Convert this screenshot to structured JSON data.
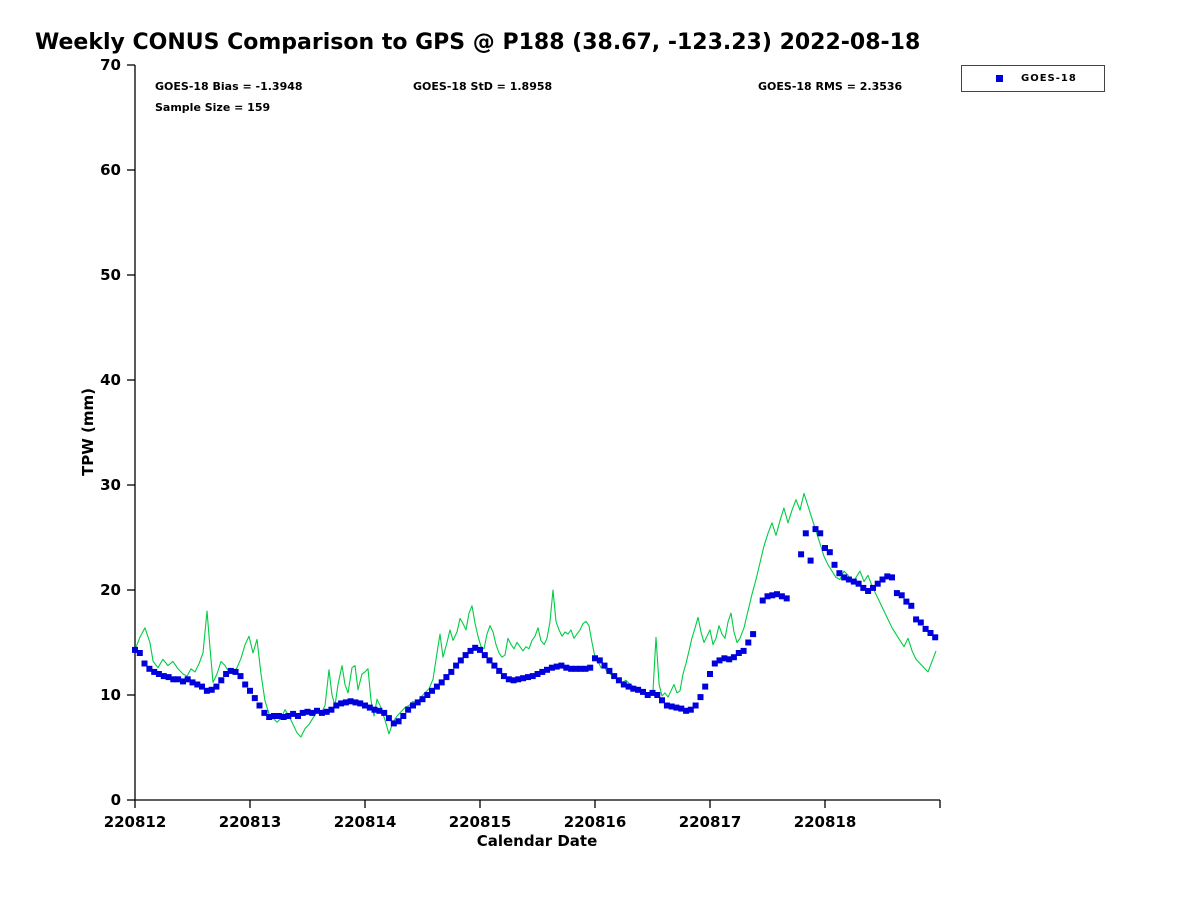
{
  "title": "Weekly CONUS Comparison to GPS @ P188 (38.67, -123.23) 2022-08-18",
  "annotations": {
    "bias": "GOES-18 Bias = -1.3948",
    "std": "GOES-18 StD = 1.8958",
    "rms": "GOES-18 RMS = 2.3536",
    "sample_size": "Sample Size = 159"
  },
  "legend": {
    "position": "top-right",
    "entries": [
      {
        "label": "GOES-18",
        "marker": "square",
        "color": "#0000dd"
      }
    ]
  },
  "chart_data": {
    "type": "line",
    "title": "Weekly CONUS Comparison to GPS @ P188 (38.67, -123.23) 2022-08-18",
    "xlabel": "Calendar Date",
    "ylabel": "TPW (mm)",
    "ylim": [
      0,
      70
    ],
    "xlim": [
      0,
      7
    ],
    "grid": false,
    "y_ticks": [
      0,
      10,
      20,
      30,
      40,
      50,
      60,
      70
    ],
    "x_ticks": [
      {
        "pos": 0,
        "label": "220812"
      },
      {
        "pos": 1,
        "label": "220813"
      },
      {
        "pos": 2,
        "label": "220814"
      },
      {
        "pos": 3,
        "label": "220815"
      },
      {
        "pos": 4,
        "label": "220816"
      },
      {
        "pos": 5,
        "label": "220817"
      },
      {
        "pos": 6,
        "label": "220818"
      },
      {
        "pos": 7,
        "label": ""
      }
    ],
    "series": [
      {
        "name": "GPS",
        "render": "line",
        "color": "#00cc44",
        "x": [
          0.0,
          0.043,
          0.087,
          0.13,
          0.157,
          0.2,
          0.243,
          0.287,
          0.33,
          0.374,
          0.417,
          0.452,
          0.487,
          0.522,
          0.557,
          0.591,
          0.626,
          0.652,
          0.678,
          0.713,
          0.748,
          0.783,
          0.817,
          0.852,
          0.887,
          0.922,
          0.957,
          0.991,
          1.026,
          1.061,
          1.096,
          1.13,
          1.165,
          1.2,
          1.235,
          1.27,
          1.304,
          1.339,
          1.374,
          1.409,
          1.443,
          1.478,
          1.513,
          1.548,
          1.583,
          1.617,
          1.652,
          1.687,
          1.713,
          1.739,
          1.765,
          1.8,
          1.826,
          1.852,
          1.887,
          1.913,
          1.939,
          1.974,
          2.0,
          2.026,
          2.052,
          2.078,
          2.104,
          2.139,
          2.174,
          2.209,
          2.243,
          2.278,
          2.313,
          2.348,
          2.383,
          2.417,
          2.452,
          2.487,
          2.522,
          2.557,
          2.591,
          2.626,
          2.652,
          2.678,
          2.713,
          2.739,
          2.765,
          2.8,
          2.826,
          2.852,
          2.878,
          2.904,
          2.93,
          2.957,
          2.983,
          3.009,
          3.035,
          3.061,
          3.087,
          3.113,
          3.139,
          3.165,
          3.191,
          3.217,
          3.243,
          3.27,
          3.296,
          3.322,
          3.348,
          3.374,
          3.4,
          3.426,
          3.452,
          3.478,
          3.504,
          3.53,
          3.557,
          3.583,
          3.609,
          3.635,
          3.661,
          3.687,
          3.713,
          3.739,
          3.765,
          3.791,
          3.817,
          3.843,
          3.87,
          3.896,
          3.922,
          3.948,
          3.974,
          4.0,
          4.026,
          4.052,
          4.078,
          4.104,
          4.13,
          4.165,
          4.2,
          4.235,
          4.27,
          4.304,
          4.339,
          4.374,
          4.409,
          4.443,
          4.478,
          4.504,
          4.53,
          4.557,
          4.583,
          4.609,
          4.635,
          4.661,
          4.687,
          4.713,
          4.739,
          4.765,
          4.791,
          4.817,
          4.843,
          4.87,
          4.896,
          4.922,
          4.948,
          4.974,
          5.0,
          5.026,
          5.052,
          5.078,
          5.104,
          5.13,
          5.157,
          5.183,
          5.209,
          5.235,
          5.261,
          5.296,
          5.33,
          5.365,
          5.4,
          5.435,
          5.47,
          5.504,
          5.539,
          5.574,
          5.609,
          5.643,
          5.678,
          5.713,
          5.748,
          5.783,
          5.817,
          5.852,
          5.887,
          5.922,
          5.957,
          5.991,
          6.026,
          6.061,
          6.096,
          6.13,
          6.165,
          6.2,
          6.235,
          6.27,
          6.304,
          6.339,
          6.374,
          6.409,
          6.443,
          6.478,
          6.513,
          6.548,
          6.583,
          6.617,
          6.652,
          6.687,
          6.722,
          6.757,
          6.791,
          6.826,
          6.861,
          6.896,
          6.93,
          6.965
        ],
        "y": [
          14.3,
          15.5,
          16.4,
          15.0,
          13.2,
          12.6,
          13.4,
          12.8,
          13.2,
          12.5,
          12.0,
          11.8,
          12.5,
          12.2,
          13.0,
          14.0,
          18.0,
          14.5,
          11.2,
          12.0,
          13.2,
          12.8,
          12.2,
          12.0,
          12.6,
          13.5,
          14.8,
          15.6,
          14.0,
          15.3,
          12.0,
          9.5,
          8.2,
          7.8,
          7.4,
          7.8,
          8.6,
          8.0,
          7.2,
          6.4,
          6.0,
          6.8,
          7.2,
          7.8,
          8.4,
          8.2,
          9.0,
          12.4,
          10.0,
          9.0,
          11.0,
          12.8,
          11.0,
          10.2,
          12.6,
          12.8,
          10.5,
          12.0,
          12.2,
          12.5,
          9.5,
          8.0,
          9.6,
          8.8,
          7.6,
          6.3,
          7.4,
          8.0,
          8.4,
          8.8,
          9.0,
          9.4,
          9.2,
          9.8,
          10.2,
          10.6,
          11.5,
          14.0,
          15.8,
          13.6,
          15.0,
          16.2,
          15.2,
          16.0,
          17.3,
          16.8,
          16.2,
          17.8,
          18.5,
          16.8,
          15.6,
          14.6,
          14.4,
          15.8,
          16.6,
          16.0,
          14.8,
          14.0,
          13.6,
          13.8,
          15.4,
          14.8,
          14.4,
          15.0,
          14.6,
          14.2,
          14.6,
          14.4,
          15.2,
          15.6,
          16.4,
          15.2,
          14.8,
          15.4,
          17.0,
          20.0,
          17.0,
          16.2,
          15.6,
          16.0,
          15.8,
          16.2,
          15.4,
          15.8,
          16.2,
          16.8,
          17.0,
          16.6,
          15.0,
          13.6,
          13.2,
          12.6,
          12.8,
          12.2,
          12.0,
          11.8,
          11.5,
          11.2,
          11.4,
          11.0,
          10.8,
          10.6,
          10.4,
          10.2,
          10.0,
          10.4,
          15.5,
          11.0,
          9.9,
          10.2,
          9.8,
          10.4,
          11.0,
          10.2,
          10.4,
          12.0,
          13.0,
          14.2,
          15.4,
          16.4,
          17.4,
          16.0,
          15.0,
          15.6,
          16.2,
          14.8,
          15.4,
          16.6,
          15.8,
          15.4,
          17.0,
          17.8,
          16.0,
          15.0,
          15.4,
          16.4,
          18.0,
          19.6,
          21.0,
          22.6,
          24.2,
          25.4,
          26.4,
          25.2,
          26.6,
          27.8,
          26.4,
          27.6,
          28.6,
          27.6,
          29.2,
          28.0,
          26.8,
          25.6,
          24.4,
          23.2,
          22.4,
          21.8,
          21.2,
          21.0,
          21.8,
          21.4,
          20.6,
          21.2,
          21.8,
          20.8,
          21.4,
          20.4,
          19.6,
          18.8,
          18.0,
          17.2,
          16.4,
          15.8,
          15.2,
          14.6,
          15.4,
          14.2,
          13.4,
          13.0,
          12.6,
          12.2,
          13.2,
          14.2
        ]
      },
      {
        "name": "GOES-18",
        "render": "scatter",
        "marker": "square",
        "color": "#0000dd",
        "x": [
          0.0,
          0.042,
          0.083,
          0.125,
          0.167,
          0.208,
          0.25,
          0.292,
          0.333,
          0.375,
          0.417,
          0.458,
          0.5,
          0.542,
          0.583,
          0.625,
          0.667,
          0.708,
          0.75,
          0.792,
          0.833,
          0.875,
          0.917,
          0.958,
          1.0,
          1.042,
          1.083,
          1.125,
          1.167,
          1.208,
          1.25,
          1.292,
          1.333,
          1.375,
          1.417,
          1.458,
          1.5,
          1.542,
          1.583,
          1.625,
          1.667,
          1.708,
          1.75,
          1.792,
          1.833,
          1.875,
          1.917,
          1.958,
          2.0,
          2.042,
          2.083,
          2.125,
          2.167,
          2.208,
          2.25,
          2.292,
          2.333,
          2.375,
          2.417,
          2.458,
          2.5,
          2.542,
          2.583,
          2.625,
          2.667,
          2.708,
          2.75,
          2.792,
          2.833,
          2.875,
          2.917,
          2.958,
          3.0,
          3.042,
          3.083,
          3.125,
          3.167,
          3.208,
          3.25,
          3.292,
          3.333,
          3.375,
          3.417,
          3.458,
          3.5,
          3.542,
          3.583,
          3.625,
          3.667,
          3.708,
          3.75,
          3.792,
          3.833,
          3.875,
          3.917,
          3.958,
          4.0,
          4.042,
          4.083,
          4.125,
          4.167,
          4.208,
          4.25,
          4.292,
          4.333,
          4.375,
          4.417,
          4.458,
          4.5,
          4.542,
          4.583,
          4.625,
          4.667,
          4.708,
          4.75,
          4.792,
          4.833,
          4.875,
          4.917,
          4.958,
          5.0,
          5.042,
          5.083,
          5.125,
          5.167,
          5.208,
          5.25,
          5.292,
          5.333,
          5.375,
          5.458,
          5.5,
          5.542,
          5.583,
          5.625,
          5.667,
          5.792,
          5.833,
          5.875,
          5.917,
          5.958,
          6.0,
          6.042,
          6.083,
          6.125,
          6.167,
          6.208,
          6.25,
          6.292,
          6.333,
          6.375,
          6.417,
          6.458,
          6.5,
          6.542,
          6.583,
          6.625,
          6.667,
          6.708,
          6.75,
          6.792,
          6.833,
          6.875,
          6.917,
          6.958
        ],
        "y": [
          14.3,
          14.0,
          13.0,
          12.5,
          12.2,
          12.0,
          11.8,
          11.7,
          11.5,
          11.5,
          11.3,
          11.5,
          11.2,
          11.0,
          10.8,
          10.4,
          10.5,
          10.8,
          11.4,
          12.0,
          12.3,
          12.2,
          11.8,
          11.0,
          10.4,
          9.7,
          9.0,
          8.3,
          7.9,
          8.0,
          8.0,
          7.9,
          8.0,
          8.2,
          8.0,
          8.3,
          8.4,
          8.3,
          8.5,
          8.3,
          8.4,
          8.6,
          9.0,
          9.2,
          9.3,
          9.4,
          9.3,
          9.2,
          9.0,
          8.8,
          8.6,
          8.5,
          8.3,
          7.8,
          7.3,
          7.5,
          8.0,
          8.6,
          9.0,
          9.3,
          9.6,
          10.0,
          10.4,
          10.8,
          11.2,
          11.7,
          12.2,
          12.8,
          13.3,
          13.8,
          14.2,
          14.5,
          14.3,
          13.8,
          13.3,
          12.8,
          12.3,
          11.8,
          11.5,
          11.4,
          11.5,
          11.6,
          11.7,
          11.8,
          12.0,
          12.2,
          12.4,
          12.6,
          12.7,
          12.8,
          12.6,
          12.5,
          12.5,
          12.5,
          12.5,
          12.6,
          13.5,
          13.3,
          12.8,
          12.3,
          11.8,
          11.4,
          11.0,
          10.8,
          10.6,
          10.5,
          10.3,
          10.0,
          10.2,
          10.0,
          9.5,
          9.0,
          8.9,
          8.8,
          8.7,
          8.5,
          8.6,
          9.0,
          9.8,
          10.8,
          12.0,
          13.0,
          13.3,
          13.5,
          13.4,
          13.6,
          14.0,
          14.2,
          15.0,
          15.8,
          19.0,
          19.4,
          19.5,
          19.6,
          19.4,
          19.2,
          23.4,
          25.4,
          22.8,
          25.8,
          25.4,
          24.0,
          23.6,
          22.4,
          21.6,
          21.2,
          21.0,
          20.8,
          20.6,
          20.2,
          19.9,
          20.2,
          20.6,
          21.0,
          21.3,
          21.2,
          19.7,
          19.5,
          18.9,
          18.5,
          17.2,
          16.9,
          16.3,
          15.9,
          15.5
        ]
      }
    ]
  }
}
